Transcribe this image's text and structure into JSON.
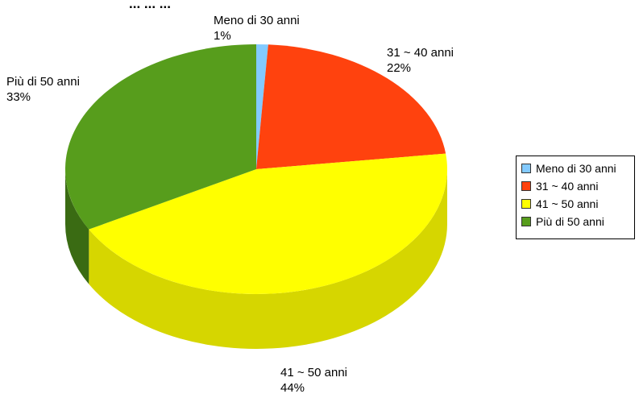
{
  "chart_data": {
    "type": "pie",
    "title": "",
    "partial_title": "...pe ... ...",
    "categories": [
      "Meno di 30 anni",
      "31 ~ 40 anni",
      "41 ~ 50 anni",
      "Più di 50 anni"
    ],
    "values": [
      1,
      22,
      44,
      33
    ],
    "labels": [
      "1%",
      "22%",
      "44%",
      "33%"
    ],
    "colors": [
      "#83CAFF",
      "#FF420E",
      "#FFFF00",
      "#579D1C"
    ],
    "side_colors": [
      "#5E93BA",
      "#BA300A",
      "#D6D600",
      "#3A6B13"
    ],
    "legend_position": "right",
    "style": "3d"
  },
  "legend": {
    "items": [
      {
        "label": "Meno di 30 anni",
        "color": "#83CAFF"
      },
      {
        "label": "31 ~ 40 anni",
        "color": "#FF420E"
      },
      {
        "label": "41 ~ 50 anni",
        "color": "#FFFF00"
      },
      {
        "label": "Più di 50 anni",
        "color": "#579D1C"
      }
    ]
  }
}
